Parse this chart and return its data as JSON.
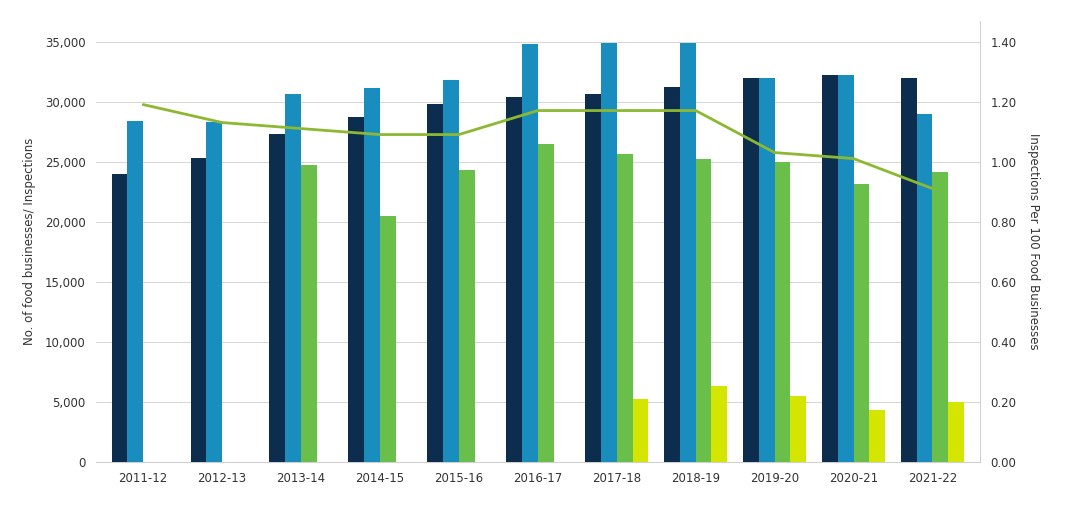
{
  "years": [
    "2011-12",
    "2012-13",
    "2013-14",
    "2014-15",
    "2015-16",
    "2016-17",
    "2017-18",
    "2018-19",
    "2019-20",
    "2020-21",
    "2021-22"
  ],
  "bar1_dark_navy": [
    24000,
    25300,
    27300,
    28700,
    29800,
    30400,
    30600,
    31200,
    32000,
    32200,
    32000
  ],
  "bar2_cyan": [
    28400,
    28300,
    30600,
    31100,
    31800,
    34800,
    34900,
    34900,
    32000,
    32200,
    29000
  ],
  "bar3_green": [
    0,
    0,
    24700,
    20500,
    24300,
    26500,
    25600,
    25200,
    25000,
    23100,
    24100
  ],
  "bar4_yellow": [
    0,
    0,
    0,
    0,
    0,
    0,
    5200,
    6300,
    5500,
    4300,
    5000
  ],
  "line_values": [
    1.19,
    1.13,
    1.11,
    1.09,
    1.09,
    1.17,
    1.17,
    1.17,
    1.03,
    1.01,
    0.91
  ],
  "bar1_color": "#0d2d4e",
  "bar2_color": "#1a8dbf",
  "bar3_color": "#6abf4b",
  "bar4_color": "#d4e600",
  "line_color": "#8db832",
  "ylabel_left": "No. of food businesses/ Inspections",
  "ylabel_right": "Inspections Per 100 Food Businesses",
  "ylim_left": [
    0,
    36750
  ],
  "ylim_right": [
    0.0,
    1.47
  ],
  "yticks_left": [
    0,
    5000,
    10000,
    15000,
    20000,
    25000,
    30000,
    35000
  ],
  "yticks_right": [
    0.0,
    0.2,
    0.4,
    0.6,
    0.8,
    1.0,
    1.2,
    1.4
  ],
  "background_color": "#ffffff",
  "grid_color": "#d0d0d0"
}
